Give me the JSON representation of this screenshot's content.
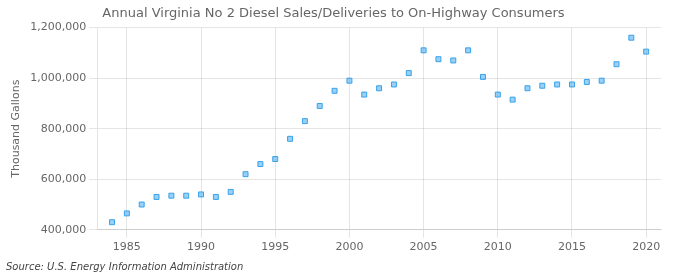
{
  "chart_data": {
    "type": "scatter",
    "title": "Annual Virginia No 2 Diesel Sales/Deliveries to On-Highway Consumers",
    "ylabel": "Thousand Gallons",
    "annotations": [
      "Source: U.S. Energy Information Administration"
    ],
    "x": [
      1984,
      1985,
      1986,
      1987,
      1988,
      1989,
      1990,
      1991,
      1992,
      1993,
      1994,
      1995,
      1996,
      1997,
      1998,
      1999,
      2000,
      2001,
      2002,
      2003,
      2004,
      2005,
      2006,
      2007,
      2008,
      2009,
      2010,
      2011,
      2012,
      2013,
      2014,
      2015,
      2016,
      2017,
      2018,
      2019,
      2020
    ],
    "values": [
      430000,
      465000,
      500000,
      530000,
      535000,
      535000,
      540000,
      530000,
      550000,
      620000,
      660000,
      680000,
      760000,
      830000,
      890000,
      950000,
      990000,
      935000,
      960000,
      975000,
      1020000,
      1110000,
      1075000,
      1070000,
      1110000,
      1005000,
      935000,
      915000,
      960000,
      970000,
      975000,
      975000,
      985000,
      990000,
      1055000,
      1160000,
      1105000
    ],
    "xlim": [
      1983,
      2021
    ],
    "xticks": [
      1985,
      1990,
      1995,
      2000,
      2005,
      2010,
      2015,
      2020
    ],
    "ylim": [
      400000,
      1200000
    ],
    "yticks": [
      {
        "value": 400000,
        "label": "400,000"
      },
      {
        "value": 600000,
        "label": "600,000"
      },
      {
        "value": 800000,
        "label": "800,000"
      },
      {
        "value": 1000000,
        "label": "1,000,000"
      },
      {
        "value": 1200000,
        "label": "1,200,000"
      }
    ],
    "grid": true,
    "marker": "square"
  }
}
